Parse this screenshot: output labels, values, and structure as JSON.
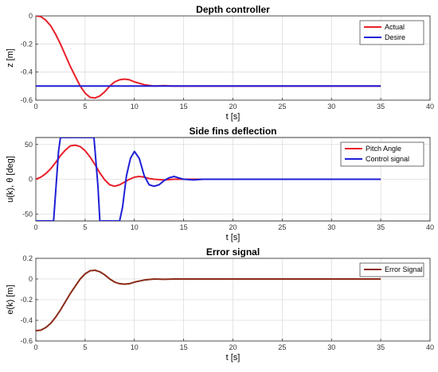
{
  "chart_data": [
    {
      "type": "line",
      "title": "Depth controller",
      "xlabel": "t [s]",
      "ylabel": "z [m]",
      "xlim": [
        0,
        40
      ],
      "ylim": [
        -0.6,
        0
      ],
      "xticks": [
        0,
        5,
        10,
        15,
        20,
        25,
        30,
        35,
        40
      ],
      "yticks": [
        -0.6,
        -0.4,
        -0.2,
        0
      ],
      "grid": true,
      "legend": "top-right",
      "series": [
        {
          "name": "Actual",
          "color": "#e8202a",
          "x": [
            0,
            0.5,
            1,
            1.5,
            2,
            2.5,
            3,
            3.5,
            4,
            4.5,
            5,
            5.5,
            6,
            6.5,
            7,
            7.5,
            8,
            8.5,
            9,
            9.5,
            10,
            11,
            12,
            13,
            14,
            15,
            17,
            20,
            25,
            30,
            35
          ],
          "y": [
            0,
            -0.005,
            -0.03,
            -0.07,
            -0.13,
            -0.2,
            -0.28,
            -0.36,
            -0.43,
            -0.5,
            -0.55,
            -0.58,
            -0.585,
            -0.57,
            -0.54,
            -0.5,
            -0.47,
            -0.455,
            -0.45,
            -0.455,
            -0.47,
            -0.49,
            -0.5,
            -0.497,
            -0.5,
            -0.5,
            -0.5,
            -0.5,
            -0.5,
            -0.5,
            -0.5
          ]
        },
        {
          "name": "Desire",
          "color": "#1f1fd6",
          "x": [
            0,
            35
          ],
          "y": [
            -0.5,
            -0.5
          ]
        }
      ]
    },
    {
      "type": "line",
      "title": "Side fins deflection",
      "xlabel": "t [s]",
      "ylabel": "u(k), θ [deg]",
      "xlim": [
        0,
        40
      ],
      "ylim": [
        -60,
        60
      ],
      "xticks": [
        0,
        5,
        10,
        15,
        20,
        25,
        30,
        35,
        40
      ],
      "yticks": [
        -50,
        0,
        50
      ],
      "grid": true,
      "legend": "top-right",
      "series": [
        {
          "name": "Pitch Angle",
          "color": "#e8202a",
          "x": [
            0,
            0.5,
            1,
            1.5,
            2,
            2.5,
            3,
            3.5,
            4,
            4.5,
            5,
            5.5,
            6,
            6.5,
            7,
            7.5,
            8,
            8.5,
            9,
            9.5,
            10,
            10.5,
            11,
            11.5,
            12,
            13,
            14,
            15,
            17,
            20,
            35
          ],
          "y": [
            0,
            3,
            8,
            15,
            24,
            34,
            42,
            48,
            49,
            47,
            41,
            32,
            21,
            9,
            -1,
            -8,
            -10,
            -8,
            -4,
            0,
            3,
            4,
            3,
            1,
            0,
            -1,
            0,
            0,
            0,
            0,
            0
          ]
        },
        {
          "name": "Control signal",
          "color": "#1f1fd6",
          "x": [
            0,
            1.8,
            2.3,
            2.5,
            3,
            3.5,
            4,
            4.5,
            5,
            5.5,
            5.9,
            6.3,
            6.5,
            7,
            7.5,
            8,
            8.5,
            8.8,
            9.2,
            9.6,
            10,
            10.5,
            11,
            11.5,
            12,
            12.5,
            13,
            13.5,
            14,
            14.5,
            15,
            16,
            17,
            20,
            35
          ],
          "y": [
            -60,
            -60,
            40,
            60,
            60,
            60,
            60,
            60,
            60,
            60,
            60,
            -10,
            -60,
            -60,
            -60,
            -60,
            -60,
            -40,
            5,
            30,
            40,
            30,
            5,
            -8,
            -10,
            -8,
            -2,
            2,
            4,
            2,
            0,
            -1,
            0,
            0,
            0
          ]
        }
      ]
    },
    {
      "type": "line",
      "title": "Error signal",
      "xlabel": "t [s]",
      "ylabel": "e(k) [m]",
      "xlim": [
        0,
        40
      ],
      "ylim": [
        -0.6,
        0.2
      ],
      "xticks": [
        0,
        5,
        10,
        15,
        20,
        25,
        30,
        35,
        40
      ],
      "yticks": [
        -0.6,
        -0.4,
        -0.2,
        0,
        0.2
      ],
      "grid": true,
      "legend": "top-right",
      "series": [
        {
          "name": "Error Signal",
          "color": "#8b2a17",
          "x": [
            0,
            0.5,
            1,
            1.5,
            2,
            2.5,
            3,
            3.5,
            4,
            4.5,
            5,
            5.5,
            6,
            6.5,
            7,
            7.5,
            8,
            8.5,
            9,
            9.5,
            10,
            11,
            12,
            13,
            14,
            15,
            17,
            20,
            25,
            30,
            35
          ],
          "y": [
            -0.5,
            -0.495,
            -0.47,
            -0.43,
            -0.37,
            -0.3,
            -0.22,
            -0.14,
            -0.07,
            0,
            0.05,
            0.08,
            0.085,
            0.07,
            0.04,
            0,
            -0.03,
            -0.045,
            -0.05,
            -0.045,
            -0.03,
            -0.01,
            0,
            -0.003,
            0,
            0,
            0,
            0,
            0,
            0,
            0
          ]
        }
      ]
    }
  ]
}
